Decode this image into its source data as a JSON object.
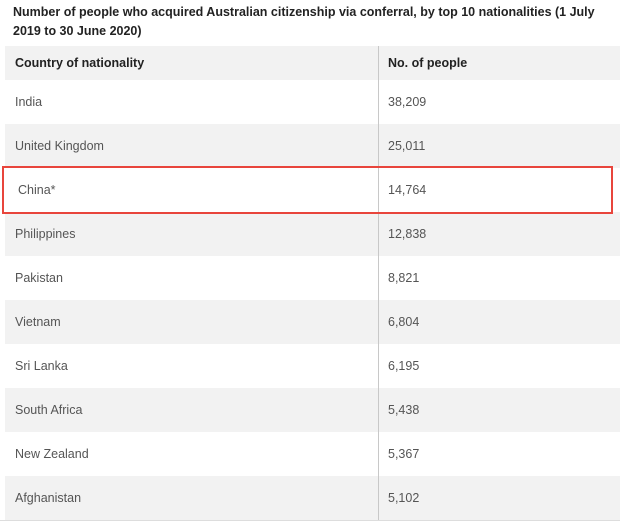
{
  "title": "Number of people who acquired Australian citizenship via conferral, by top 10 nationalities (1 July 2019 to 30 June 2020)",
  "headers": [
    "Country of nationality",
    "No. of people"
  ],
  "rows": [
    {
      "country": "India",
      "count": "38,209"
    },
    {
      "country": "United Kingdom",
      "count": "25,011"
    },
    {
      "country": "China*",
      "count": "14,764"
    },
    {
      "country": "Philippines",
      "count": "12,838"
    },
    {
      "country": "Pakistan",
      "count": "8,821"
    },
    {
      "country": "Vietnam",
      "count": "6,804"
    },
    {
      "country": "Sri Lanka",
      "count": "6,195"
    },
    {
      "country": "South Africa",
      "count": "5,438"
    },
    {
      "country": "New Zealand",
      "count": "5,367"
    },
    {
      "country": "Afghanistan",
      "count": "5,102"
    }
  ],
  "highlighted_row": "China*",
  "colors": {
    "highlight": "#e8453c",
    "stripe": "#f2f2f2"
  }
}
